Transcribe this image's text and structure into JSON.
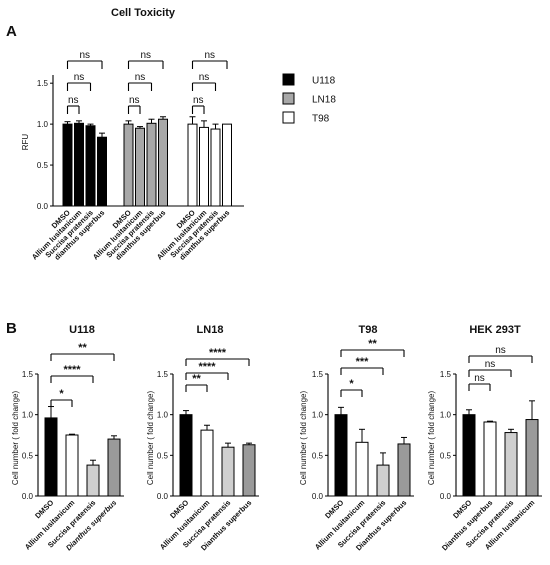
{
  "panels": {
    "a_label": "A",
    "b_label": "B"
  },
  "colors": {
    "U118": "#000000",
    "LN18": "#a8a8a8",
    "T98": "#ffffff",
    "DMSO": "#000000",
    "white": "#ffffff",
    "light": "#cfcfcf",
    "mid": "#9a9a9a",
    "stroke": "#000000"
  },
  "chart_data": [
    {
      "id": "cell-toxicity",
      "type": "bar",
      "title": "Cell Toxicity",
      "ylabel": "RFU",
      "ylim": [
        0,
        1.6
      ],
      "yticks": [
        "0.0",
        "0.5",
        "1.0",
        "1.5"
      ],
      "grid": false,
      "legend_position": "right",
      "categories": [
        "DMSO",
        "Allium lusitanicum",
        "Succisa pratensis",
        "dianthus superbus"
      ],
      "series": [
        {
          "name": "U118",
          "values": [
            1.0,
            1.01,
            0.98,
            0.84
          ],
          "errors": [
            0.03,
            0.03,
            0.02,
            0.05
          ]
        },
        {
          "name": "LN18",
          "values": [
            1.0,
            0.95,
            1.01,
            1.06
          ],
          "errors": [
            0.04,
            0.02,
            0.05,
            0.03
          ]
        },
        {
          "name": "T98",
          "values": [
            1.0,
            0.96,
            0.94,
            1.0
          ],
          "errors": [
            0.09,
            0.08,
            0.06,
            0.0
          ]
        }
      ],
      "significance": [
        "ns",
        "ns",
        "ns"
      ]
    },
    {
      "id": "u118",
      "type": "bar",
      "title": "U118",
      "ylabel": "Cell number ( fold change)",
      "ylim": [
        0,
        1.5
      ],
      "yticks": [
        "0.0",
        "0.5",
        "1.0",
        "1.5"
      ],
      "categories": [
        "DMSO",
        "Allium lusitanicum",
        "Succisa pratensis",
        "Dianthus superbus"
      ],
      "italic_categories": [
        false,
        false,
        false,
        true
      ],
      "values": [
        0.96,
        0.75,
        0.38,
        0.7
      ],
      "errors": [
        0.14,
        0.01,
        0.06,
        0.04
      ],
      "fills": [
        "#000000",
        "#ffffff",
        "#cfcfcf",
        "#9a9a9a"
      ],
      "significance": [
        "*",
        "****",
        "**"
      ]
    },
    {
      "id": "ln18",
      "type": "bar",
      "title": "LN18",
      "ylabel": "Cell number ( fold change)",
      "ylim": [
        0,
        1.5
      ],
      "yticks": [
        "0.0",
        "0.5",
        "1.0",
        "1.5"
      ],
      "categories": [
        "DMSO",
        "Allium lusitanicum",
        "Succisa pratensis",
        "Dianthus superbus"
      ],
      "italic_categories": [
        false,
        false,
        false,
        false
      ],
      "values": [
        1.0,
        0.81,
        0.6,
        0.63
      ],
      "errors": [
        0.05,
        0.06,
        0.05,
        0.02
      ],
      "fills": [
        "#000000",
        "#ffffff",
        "#cfcfcf",
        "#9a9a9a"
      ],
      "significance": [
        "**",
        "****",
        "****"
      ]
    },
    {
      "id": "t98",
      "type": "bar",
      "title": "T98",
      "ylabel": "Cell number ( fold change)",
      "ylim": [
        0,
        1.5
      ],
      "yticks": [
        "0.0",
        "0.5",
        "1.0",
        "1.5"
      ],
      "categories": [
        "DMSO",
        "Allium lusitanicum",
        "Succisa pratensis",
        "Dianthus superbus"
      ],
      "italic_categories": [
        false,
        false,
        false,
        false
      ],
      "values": [
        1.0,
        0.66,
        0.38,
        0.64
      ],
      "errors": [
        0.09,
        0.16,
        0.15,
        0.08
      ],
      "fills": [
        "#000000",
        "#ffffff",
        "#cfcfcf",
        "#9a9a9a"
      ],
      "significance": [
        "*",
        "***",
        "**"
      ]
    },
    {
      "id": "hek293t",
      "type": "bar",
      "title": "HEK 293T",
      "ylabel": "Cell number ( fold change)",
      "ylim": [
        0,
        1.5
      ],
      "yticks": [
        "0.0",
        "0.5",
        "1.0",
        "1.5"
      ],
      "categories": [
        "DMSO",
        "Dianthus superbus",
        "Succisa pratensis",
        "Allium lusitanicum"
      ],
      "italic_categories": [
        false,
        false,
        false,
        false
      ],
      "values": [
        1.0,
        0.91,
        0.78,
        0.94
      ],
      "errors": [
        0.06,
        0.01,
        0.04,
        0.23
      ],
      "fills": [
        "#000000",
        "#ffffff",
        "#cfcfcf",
        "#9a9a9a"
      ],
      "significance": [
        "ns",
        "ns",
        "ns"
      ]
    }
  ]
}
